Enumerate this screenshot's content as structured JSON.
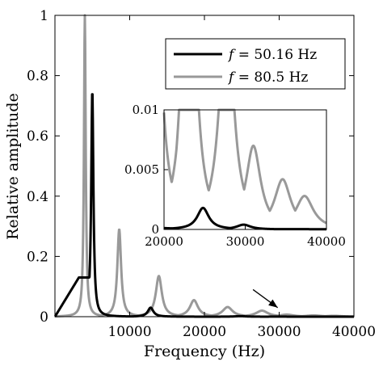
{
  "chart_data": {
    "type": "line",
    "xlabel": "Frequency (Hz)",
    "ylabel": "Relative amplitude",
    "xlim": [
      0,
      40000
    ],
    "ylim": [
      0,
      1
    ],
    "x_ticks": [
      10000,
      20000,
      30000,
      40000
    ],
    "x_tick_labels": [
      "10000",
      "20000",
      "30000",
      "40000"
    ],
    "y_ticks": [
      0,
      0.2,
      0.4,
      0.6,
      0.8,
      1
    ],
    "y_tick_labels": [
      "0",
      "0.2",
      "0.4",
      "0.6",
      "0.8",
      "1"
    ],
    "grid": false,
    "legend": {
      "placement": "top-right",
      "entries": [
        {
          "prefix": "f",
          "suffix": " = 50.16 Hz",
          "color": "#000000"
        },
        {
          "prefix": "f",
          "suffix": " = 80.5 Hz",
          "color": "#999999"
        }
      ]
    },
    "series": [
      {
        "color": "#000000",
        "peaks": [
          {
            "x": 5000,
            "y": 0.75
          },
          {
            "x": 12800,
            "y": 0.03
          },
          {
            "x": 24800,
            "y": 0.0018
          },
          {
            "x": 29800,
            "y": 0.0004
          }
        ],
        "shoulder": {
          "x": 3200,
          "y": 0.13
        }
      },
      {
        "color": "#999999",
        "peaks": [
          {
            "x": 4000,
            "y": 1.0
          },
          {
            "x": 8600,
            "y": 0.29
          },
          {
            "x": 13900,
            "y": 0.135
          },
          {
            "x": 18600,
            "y": 0.055
          },
          {
            "x": 23100,
            "y": 0.032
          },
          {
            "x": 27700,
            "y": 0.02
          },
          {
            "x": 31000,
            "y": 0.007
          },
          {
            "x": 34600,
            "y": 0.0042
          },
          {
            "x": 37300,
            "y": 0.0028
          }
        ]
      }
    ],
    "inset": {
      "xlim": [
        20000,
        40000
      ],
      "ylim": [
        0,
        0.01
      ],
      "x_ticks": [
        20000,
        30000,
        40000
      ],
      "x_tick_labels": [
        "20000",
        "30000",
        "40000"
      ],
      "y_ticks": [
        0,
        0.005,
        0.01
      ],
      "y_tick_labels": [
        "0",
        "0.005",
        "0.01"
      ],
      "extra_peaks": [
        {
          "x": 22400,
          "y": 0.015
        }
      ]
    },
    "annotation": {
      "type": "arrow",
      "from": [
        26500,
        0.09
      ],
      "to": [
        29800,
        0.03
      ]
    }
  }
}
